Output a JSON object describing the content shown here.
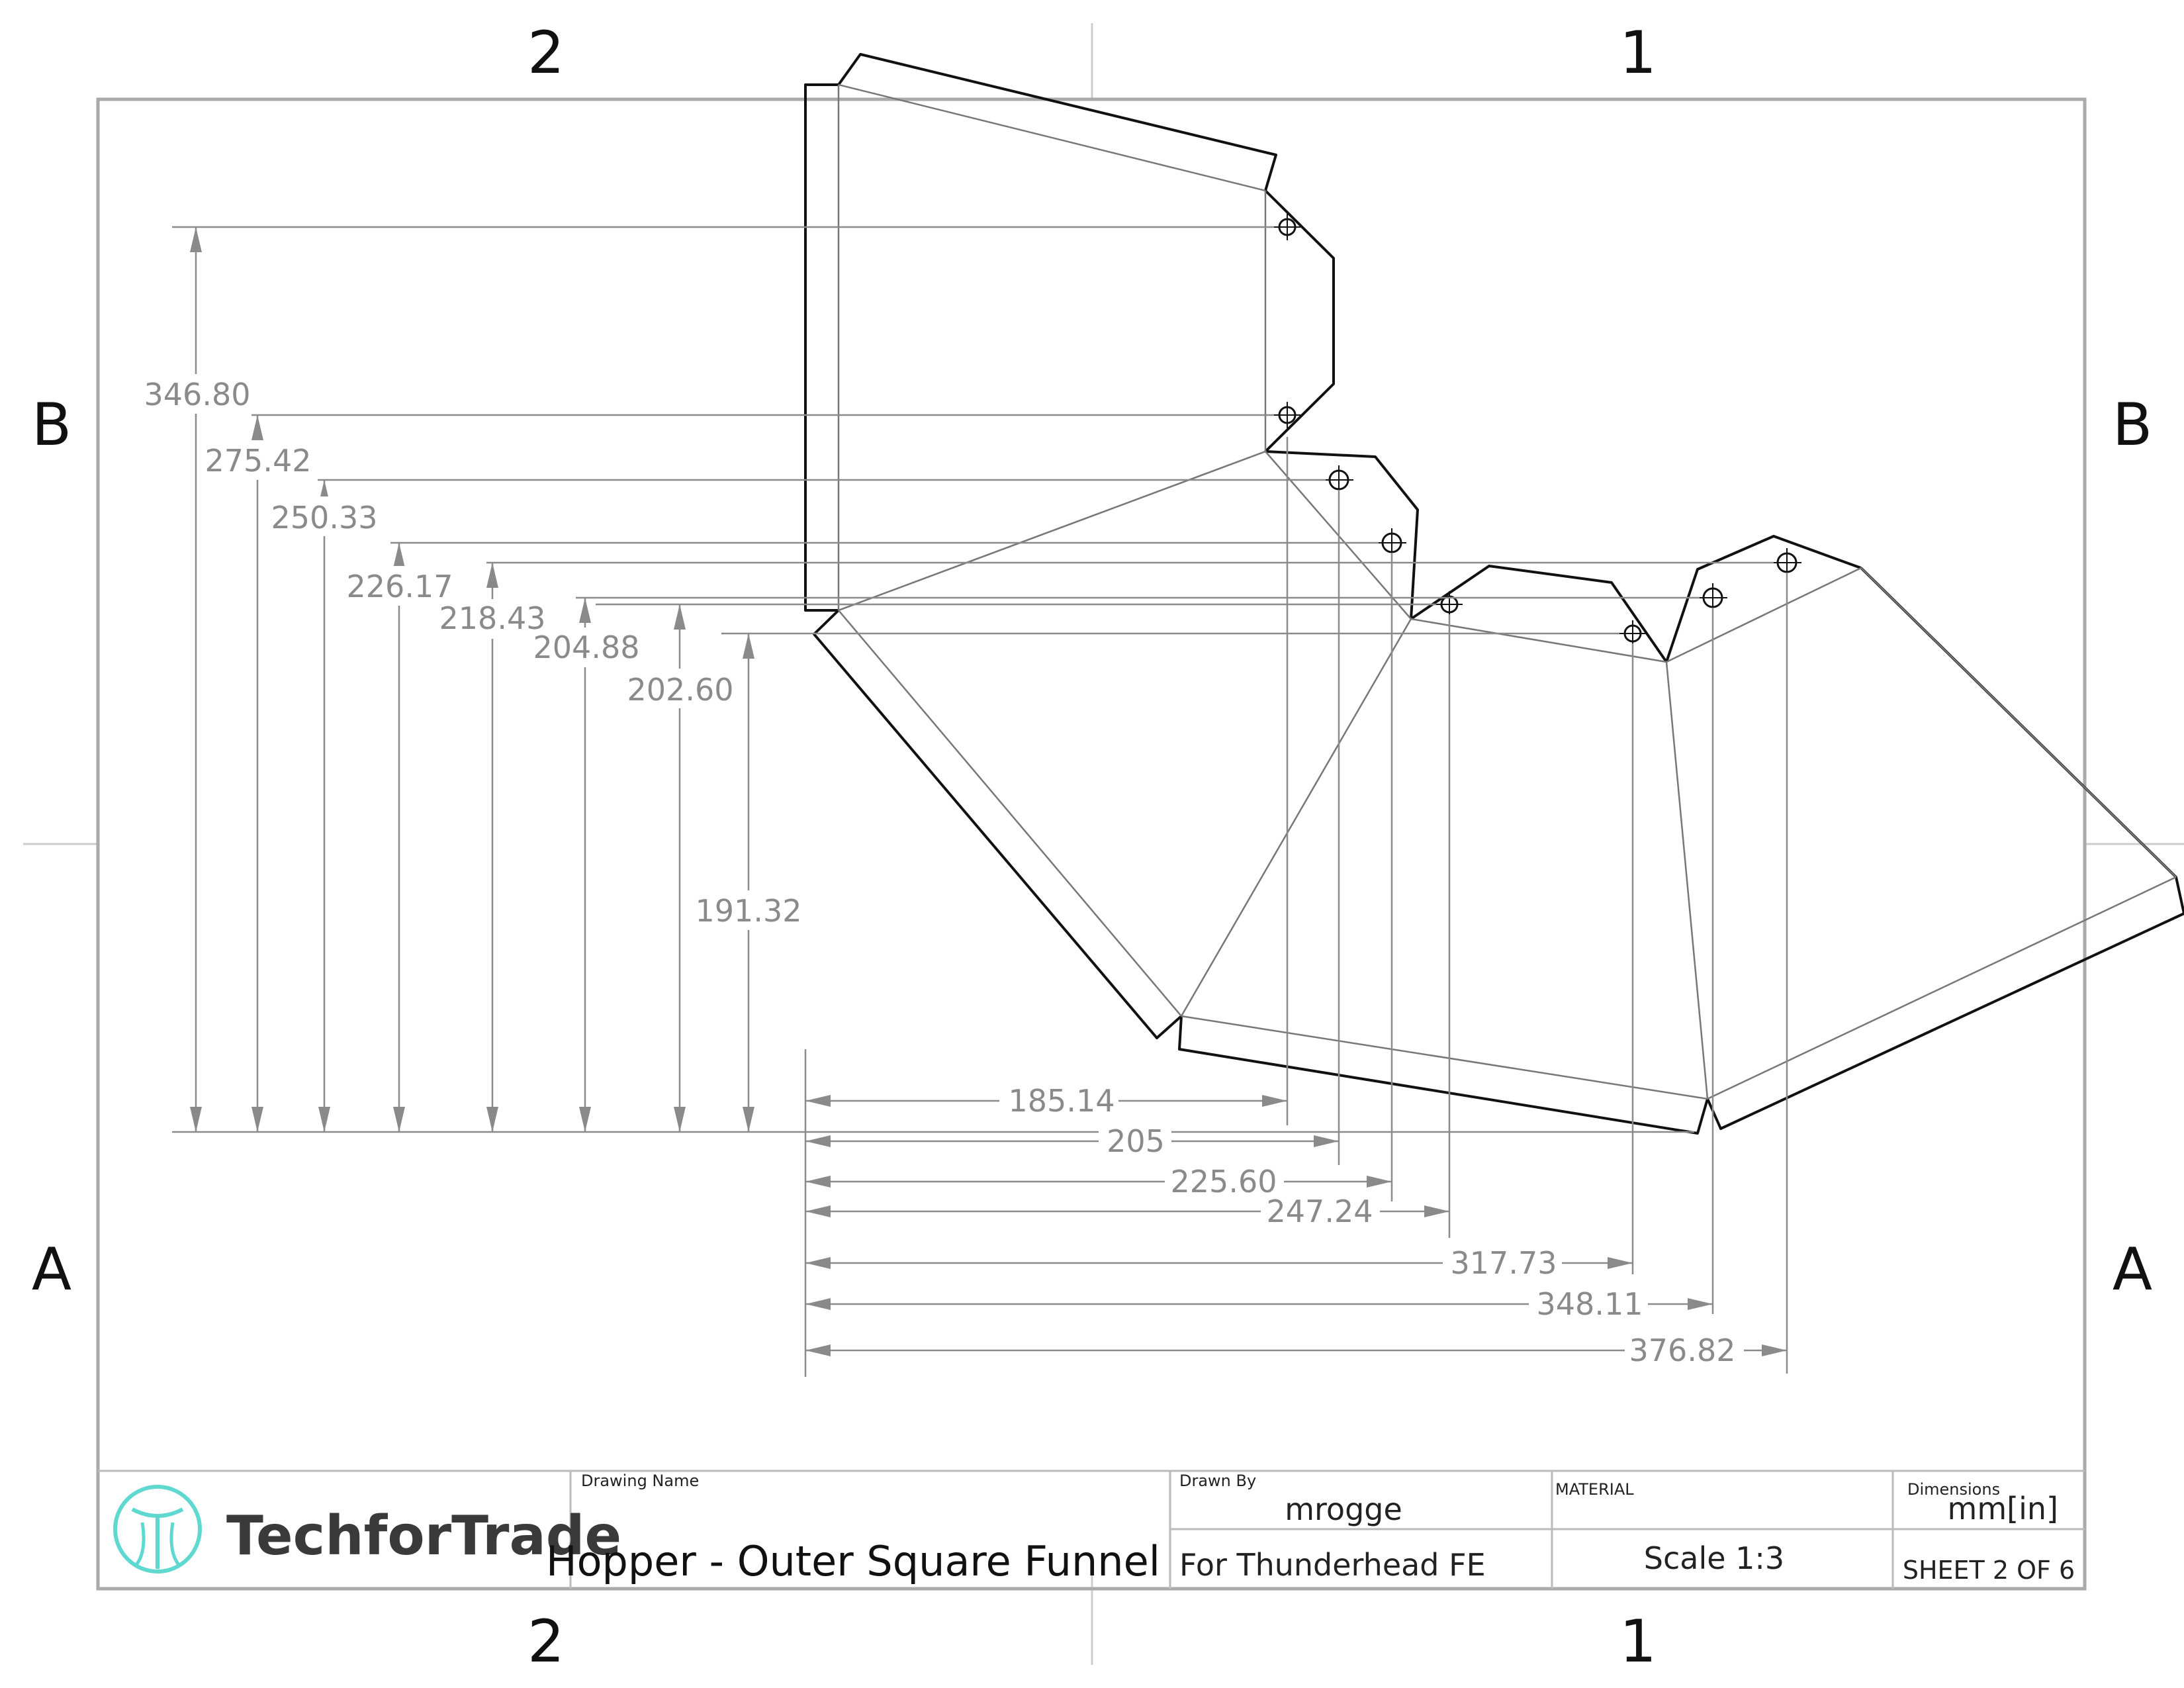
{
  "zones": {
    "top_left": "2",
    "top_right": "1",
    "bottom_left": "2",
    "bottom_right": "1",
    "left_top": "B",
    "right_top": "B",
    "left_bottom": "A",
    "right_bottom": "A"
  },
  "vertical_dimensions": [
    "346.80",
    "275.42",
    "250.33",
    "226.17",
    "218.43",
    "204.88",
    "202.60",
    "191.32"
  ],
  "horizontal_dimensions": [
    "185.14",
    "205",
    "225.60",
    "247.24",
    "317.73",
    "348.11",
    "376.82"
  ],
  "title_block": {
    "logo_text": "TechforTrade",
    "drawing_name_label": "Drawing Name",
    "drawing_name": "Hopper - Outer Square Funnel",
    "drawn_by_label": "Drawn By",
    "drawn_by": "mrogge",
    "project": "For Thunderhead FE",
    "material_label": "MATERIAL",
    "scale": "Scale 1:3",
    "dimensions_label": "Dimensions",
    "units": "mm[in]",
    "sheet": "SHEET 2 OF 6"
  },
  "colors": {
    "logo_teal": "#5fd8d0",
    "outline": "#111111",
    "dimension": "#8a8a8a"
  }
}
